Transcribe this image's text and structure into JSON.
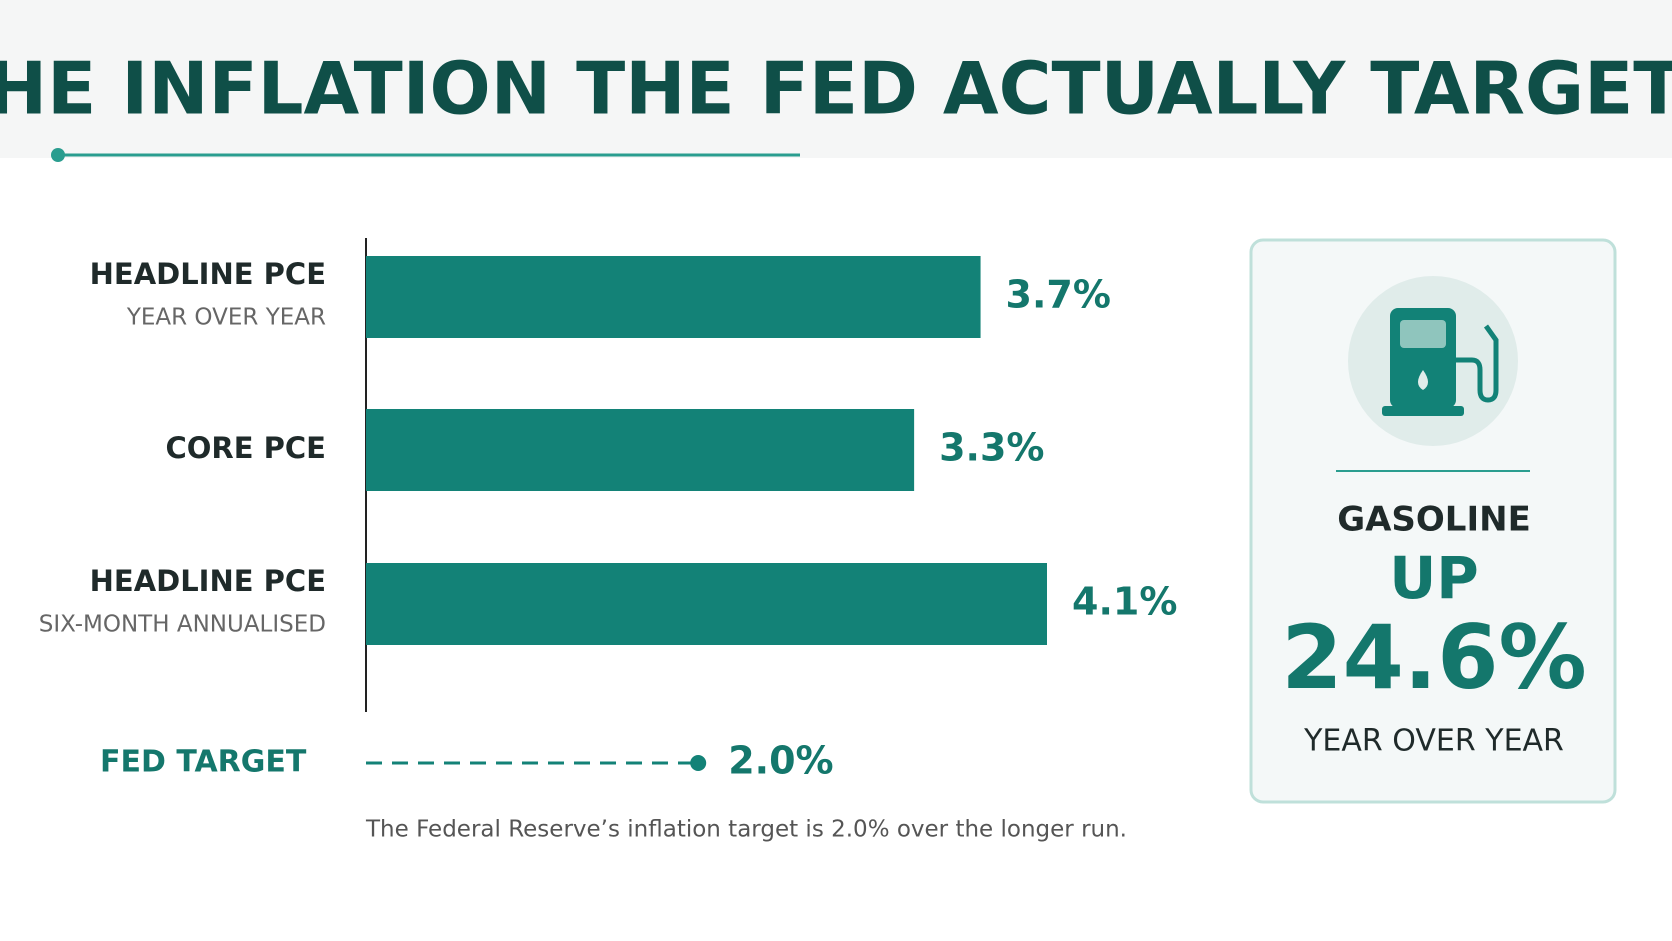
{
  "chart_data": {
    "type": "bar",
    "orientation": "horizontal",
    "title": "THE INFLATION THE FED ACTUALLY TARGETS",
    "categories": [
      "HEADLINE PCE",
      "CORE PCE",
      "HEADLINE PCE"
    ],
    "subcategories": [
      "YEAR OVER YEAR",
      null,
      "SIX-MONTH ANNUALISED"
    ],
    "values": [
      3.7,
      3.3,
      4.1
    ],
    "value_labels": [
      "3.7%",
      "3.3%",
      "4.1%"
    ],
    "color": "#138277",
    "target": {
      "label": "FED TARGET",
      "value": 2.0,
      "value_label": "2.0%"
    },
    "note": "The Federal Reserve’s inflation target is 2.0% over the longer run."
  },
  "callout": {
    "title": "GASOLINE",
    "direction": "UP",
    "value": "24.6%",
    "period": "YEAR OVER YEAR"
  }
}
